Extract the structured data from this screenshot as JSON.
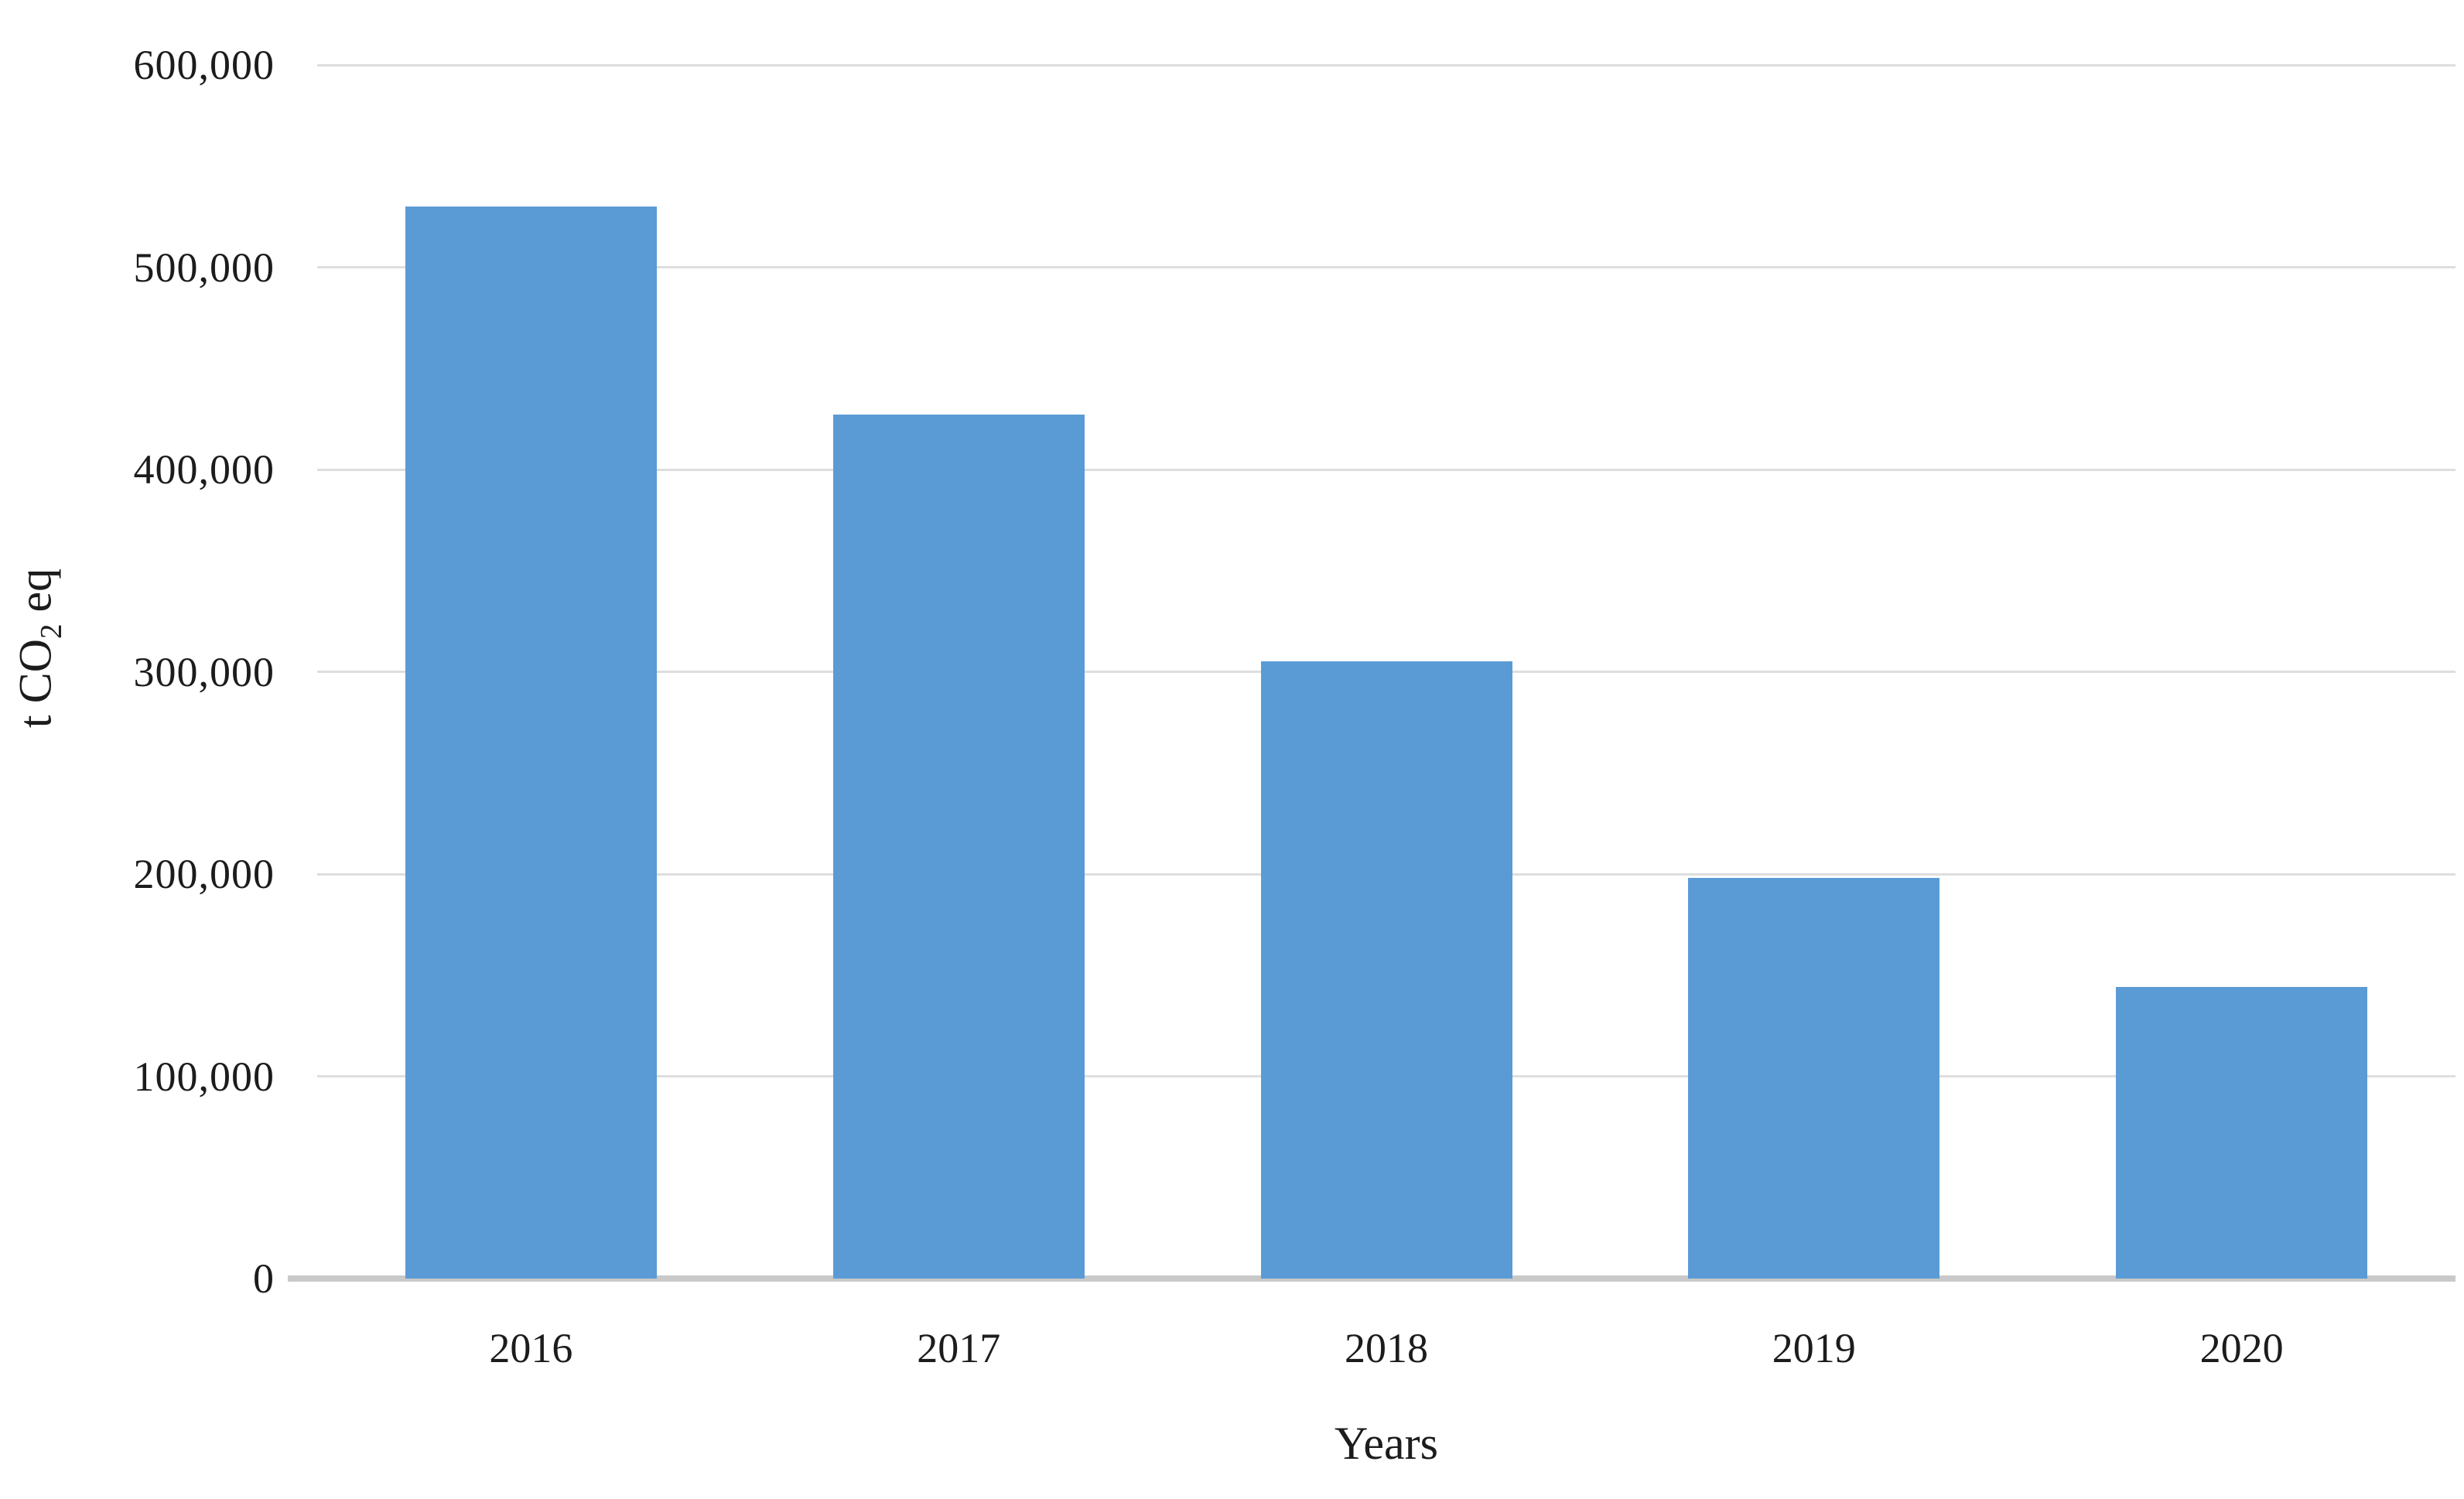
{
  "chart_data": {
    "type": "bar",
    "title": "",
    "categories": [
      "2016",
      "2017",
      "2018",
      "2019",
      "2020"
    ],
    "values": [
      530000,
      427000,
      305000,
      198000,
      144000
    ],
    "xlabel": "Years",
    "ylabel": "t CO2 eq",
    "ylabel_parts": {
      "pre": "t CO",
      "sub": "2",
      "post": " eq"
    },
    "ylim": [
      0,
      600000
    ],
    "ytick_step": 100000,
    "ytick_labels": [
      "0",
      "100,000",
      "200,000",
      "300,000",
      "400,000",
      "500,000",
      "600,000"
    ],
    "grid": true,
    "legend": false,
    "colors": {
      "bar": "#5B9BD5",
      "gridline": "#DEDEDE",
      "axis_line": "#C9C9C9",
      "text": "#1C1C1C",
      "background": "#FFFFFF"
    }
  }
}
